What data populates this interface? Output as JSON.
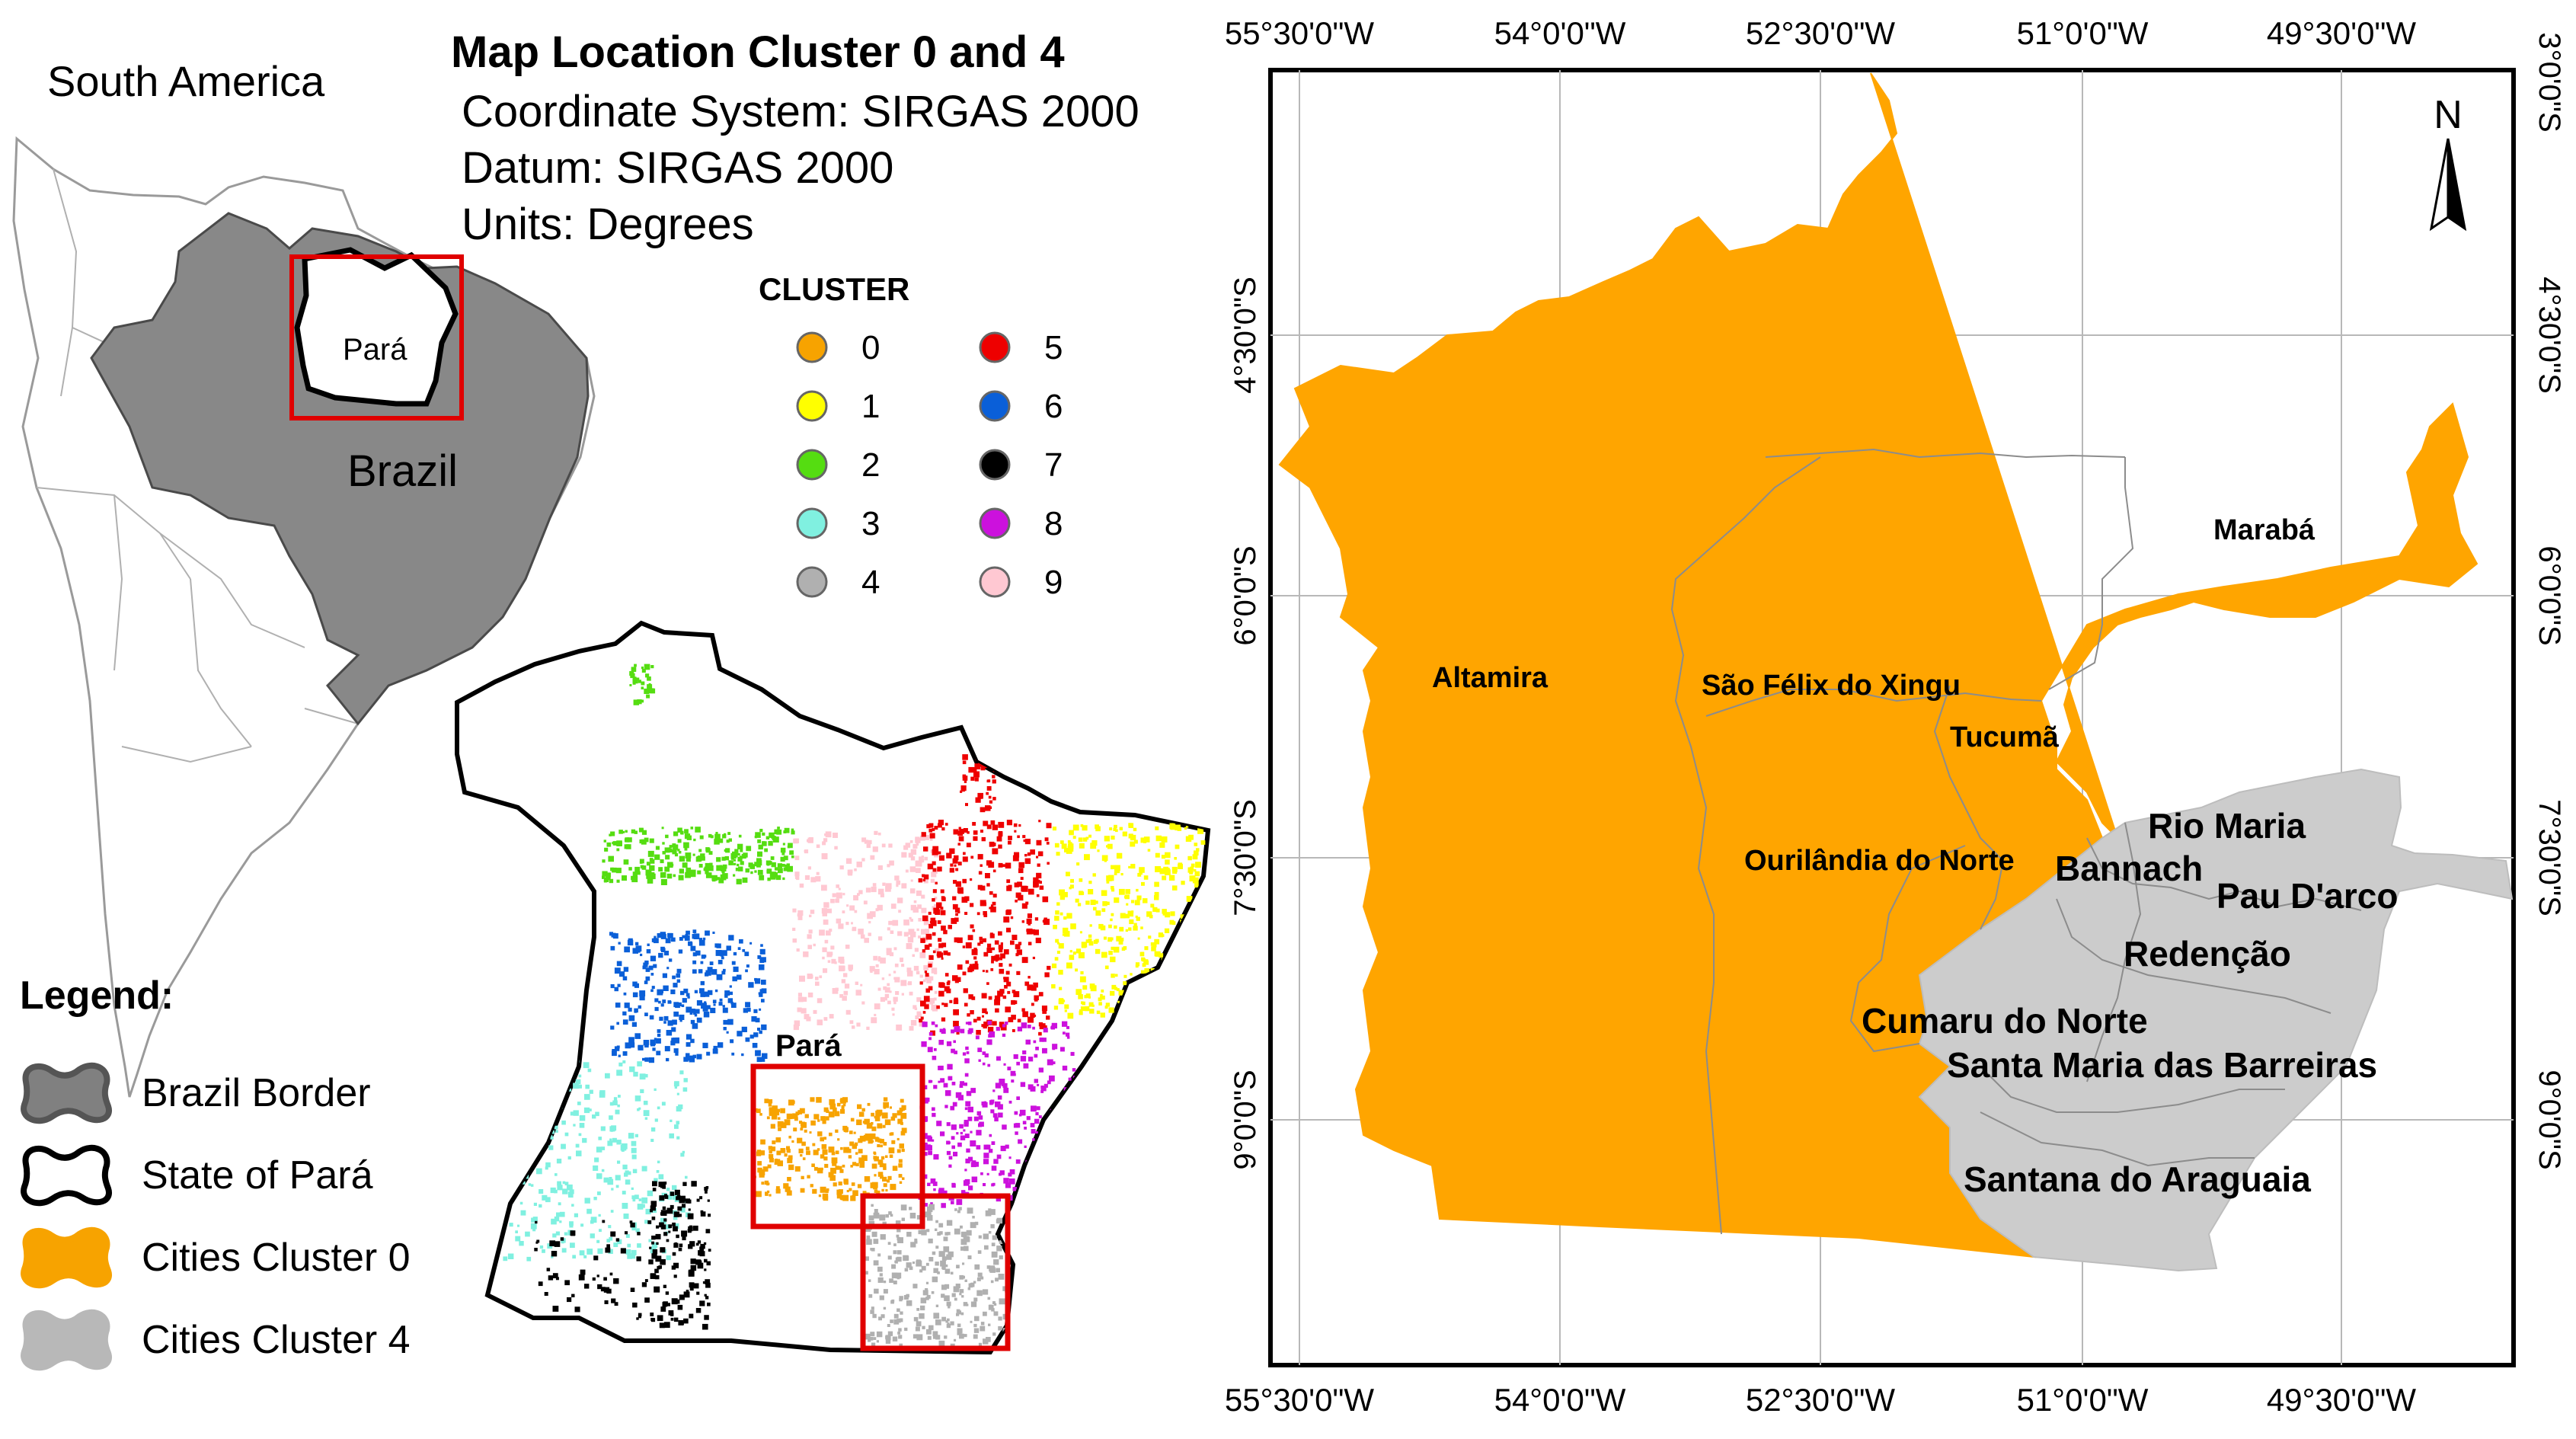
{
  "title": "Map Location Cluster 0 and 4",
  "meta": {
    "coordinate_system": "Coordinate System: SIRGAS 2000",
    "datum": "Datum: SIRGAS 2000",
    "units": "Units: Degrees"
  },
  "inset": {
    "continent_label": "South America",
    "country_label": "Brazil",
    "state_label": "Pará",
    "country_fill": "#888888"
  },
  "cluster_legend": {
    "title": "CLUSTER",
    "items": [
      {
        "label": "0",
        "color": "#f7a300"
      },
      {
        "label": "1",
        "color": "#ffff00"
      },
      {
        "label": "2",
        "color": "#55dd11"
      },
      {
        "label": "3",
        "color": "#80f0e0"
      },
      {
        "label": "4",
        "color": "#b0b0b0"
      },
      {
        "label": "5",
        "color": "#ee0000"
      },
      {
        "label": "6",
        "color": "#0a5fd8"
      },
      {
        "label": "7",
        "color": "#000000"
      },
      {
        "label": "8",
        "color": "#cc11dd"
      },
      {
        "label": "9",
        "color": "#ffc8d2"
      }
    ]
  },
  "para_map": {
    "label": "Pará"
  },
  "legend": {
    "title": "Legend:",
    "items": [
      {
        "label": "Brazil Border",
        "fill": "#808080",
        "stroke": "#555555"
      },
      {
        "label": "State of Pará",
        "fill": "#ffffff",
        "stroke": "#000000"
      },
      {
        "label": "Cities Cluster 0",
        "fill": "#f7a300",
        "stroke": "#f7a300"
      },
      {
        "label": "Cities Cluster 4",
        "fill": "#b8b8b8",
        "stroke": "#b8b8b8"
      }
    ]
  },
  "main_map": {
    "north_label": "N",
    "cluster0_color": "#ffa500",
    "cluster4_color": "#cccccc",
    "top_ticks": [
      "55°30'0\"W",
      "54°0'0\"W",
      "52°30'0\"W",
      "51°0'0\"W",
      "49°30'0\"W"
    ],
    "bottom_ticks": [
      "55°30'0\"W",
      "54°0'0\"W",
      "52°30'0\"W",
      "51°0'0\"W",
      "49°30'0\"W"
    ],
    "lat_ticks": [
      "3°0'0\"S",
      "4°30'0\"S",
      "6°0'0\"S",
      "7°30'0\"S",
      "9°0'0\"S"
    ],
    "cities": [
      "Altamira",
      "São Félix do Xingu",
      "Tucumã",
      "Marabá",
      "Ourilândia do Norte",
      "Rio Maria",
      "Bannach",
      "Pau D'arco",
      "Redenção",
      "Cumaru do Norte",
      "Santa Maria das Barreiras",
      "Santana do Araguaia"
    ]
  }
}
